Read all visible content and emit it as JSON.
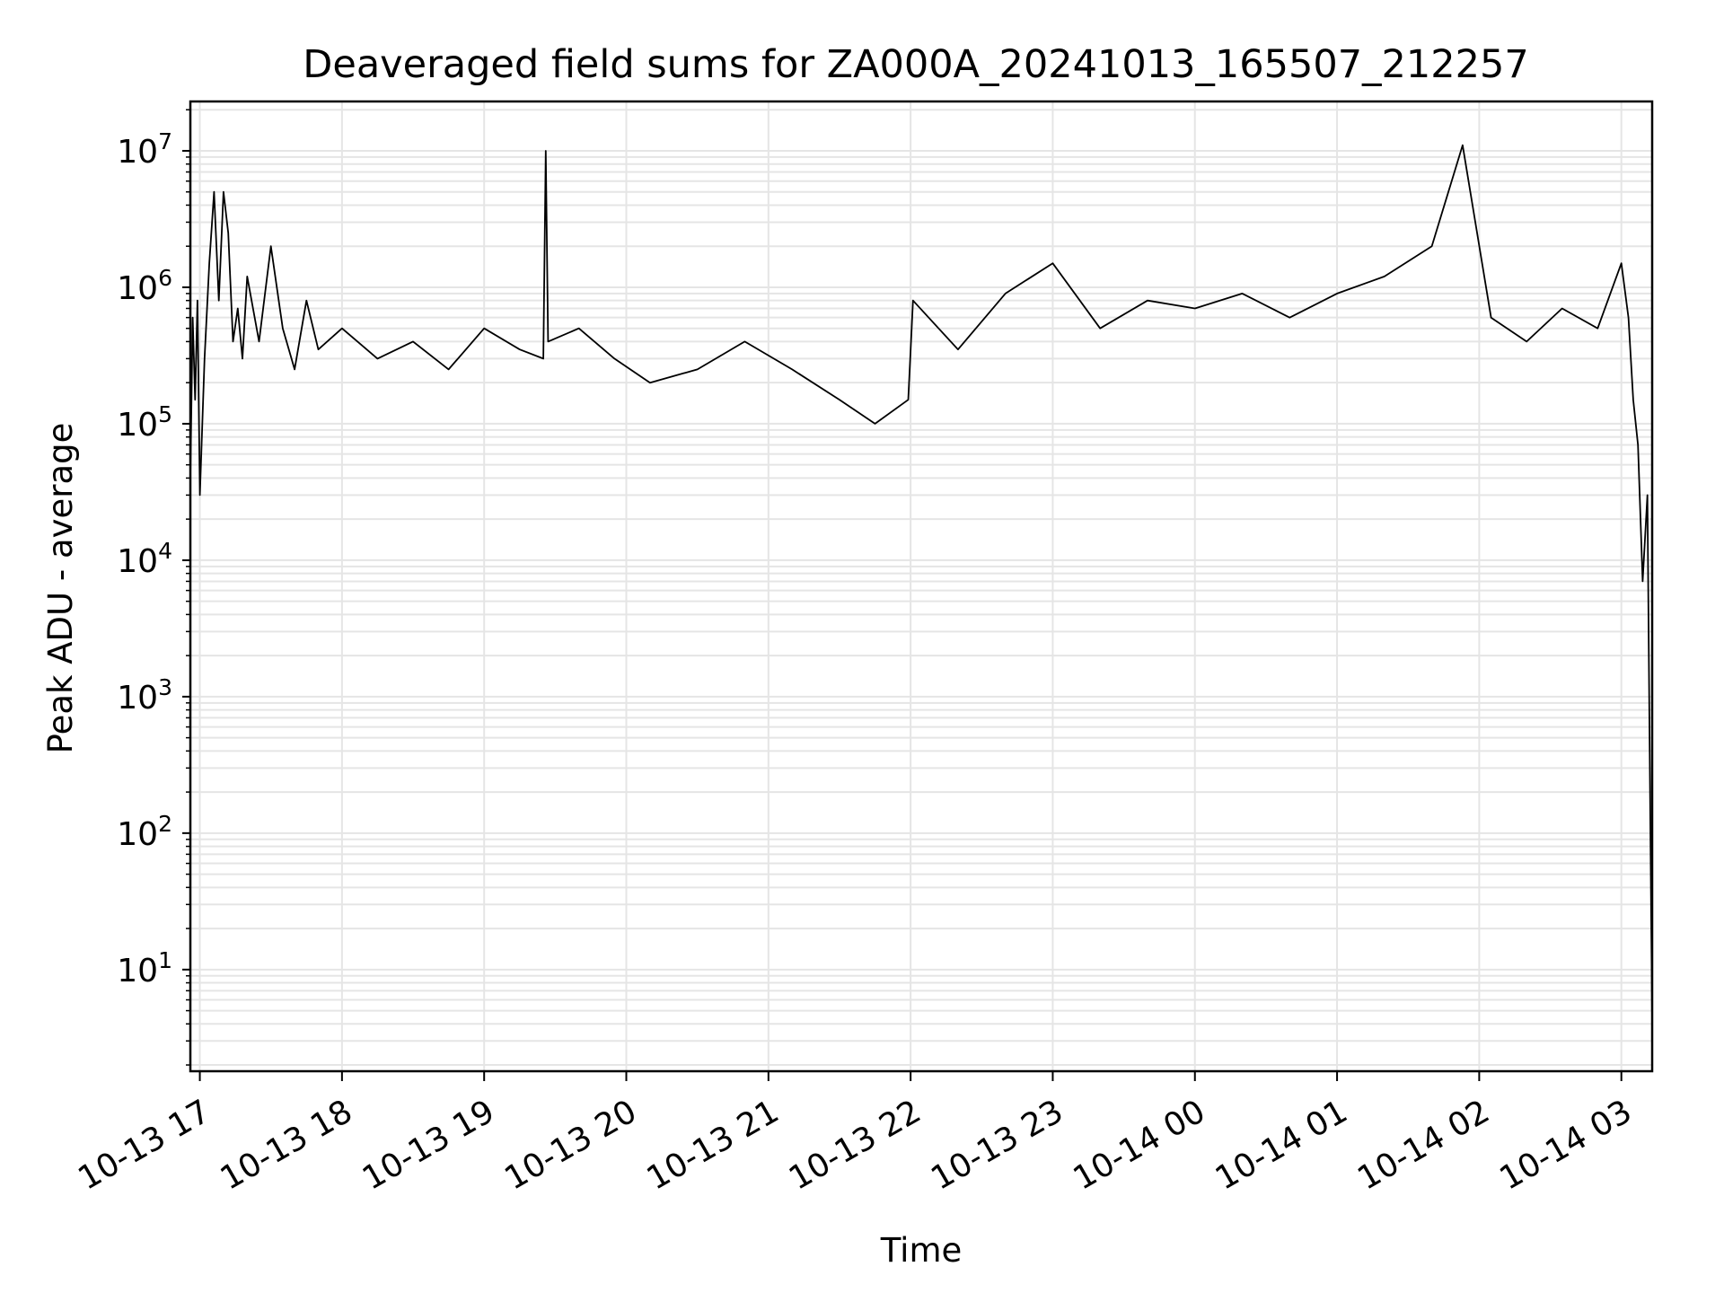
{
  "chart_data": {
    "type": "line",
    "title": "Deaveraged field sums for ZA000A_20241013_165507_212257",
    "xlabel": "Time",
    "ylabel": "Peak ADU - average",
    "y_scale": "log",
    "ylim": [
      1.8,
      23000000
    ],
    "xlim": [
      "2024-10-13 16:56",
      "2024-10-14 03:13"
    ],
    "grid": true,
    "grid_minor": true,
    "line_color": "#000000",
    "grid_color": "#e5e5e5",
    "x_tick_labels": [
      "10-13 17",
      "10-13 18",
      "10-13 19",
      "10-13 20",
      "10-13 21",
      "10-13 22",
      "10-13 23",
      "10-14 00",
      "10-14 01",
      "10-14 02",
      "10-14 03"
    ],
    "y_tick_labels": [
      {
        "base": "10",
        "exp": "1"
      },
      {
        "base": "10",
        "exp": "2"
      },
      {
        "base": "10",
        "exp": "3"
      },
      {
        "base": "10",
        "exp": "4"
      },
      {
        "base": "10",
        "exp": "5"
      },
      {
        "base": "10",
        "exp": "6"
      },
      {
        "base": "10",
        "exp": "7"
      }
    ],
    "series": [
      {
        "x": [
          "2024-10-13 16:56",
          "2024-10-13 16:57",
          "2024-10-13 16:58",
          "2024-10-13 16:59",
          "2024-10-13 17:00",
          "2024-10-13 17:02",
          "2024-10-13 17:04",
          "2024-10-13 17:06",
          "2024-10-13 17:08",
          "2024-10-13 17:10",
          "2024-10-13 17:12",
          "2024-10-13 17:14",
          "2024-10-13 17:16",
          "2024-10-13 17:18",
          "2024-10-13 17:20",
          "2024-10-13 17:25",
          "2024-10-13 17:30",
          "2024-10-13 17:35",
          "2024-10-13 17:40",
          "2024-10-13 17:45",
          "2024-10-13 17:50",
          "2024-10-13 18:00",
          "2024-10-13 18:15",
          "2024-10-13 18:30",
          "2024-10-13 18:45",
          "2024-10-13 19:00",
          "2024-10-13 19:15",
          "2024-10-13 19:25",
          "2024-10-13 19:26",
          "2024-10-13 19:27",
          "2024-10-13 19:40",
          "2024-10-13 19:55",
          "2024-10-13 20:10",
          "2024-10-13 20:30",
          "2024-10-13 20:50",
          "2024-10-13 21:10",
          "2024-10-13 21:30",
          "2024-10-13 21:45",
          "2024-10-13 21:59",
          "2024-10-13 22:01",
          "2024-10-13 22:20",
          "2024-10-13 22:40",
          "2024-10-13 23:00",
          "2024-10-13 23:20",
          "2024-10-13 23:40",
          "2024-10-14 00:00",
          "2024-10-14 00:20",
          "2024-10-14 00:40",
          "2024-10-14 01:00",
          "2024-10-14 01:20",
          "2024-10-14 01:40",
          "2024-10-14 01:53",
          "2024-10-14 02:05",
          "2024-10-14 02:20",
          "2024-10-14 02:35",
          "2024-10-14 02:50",
          "2024-10-14 03:00",
          "2024-10-14 03:03",
          "2024-10-14 03:05",
          "2024-10-14 03:07",
          "2024-10-14 03:09",
          "2024-10-14 03:11",
          "2024-10-14 03:12",
          "2024-10-14 03:13"
        ],
        "y": [
          40000,
          600000,
          150000,
          800000,
          30000,
          300000,
          1500000,
          5000000,
          800000,
          5000000,
          2500000,
          400000,
          700000,
          300000,
          1200000,
          400000,
          2000000,
          500000,
          250000,
          800000,
          350000,
          500000,
          300000,
          400000,
          250000,
          500000,
          350000,
          300000,
          10000000,
          400000,
          500000,
          300000,
          200000,
          250000,
          400000,
          250000,
          150000,
          100000,
          150000,
          800000,
          350000,
          900000,
          1500000,
          500000,
          800000,
          700000,
          900000,
          600000,
          900000,
          1200000,
          2000000,
          11000000,
          600000,
          400000,
          700000,
          500000,
          1500000,
          600000,
          150000,
          70000,
          7000,
          30000,
          300,
          4
        ]
      }
    ]
  }
}
